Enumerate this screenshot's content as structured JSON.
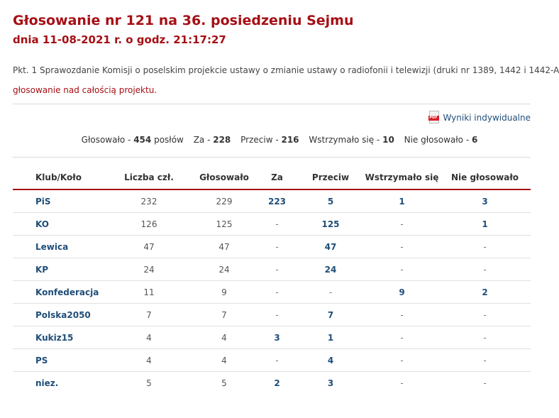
{
  "header": {
    "title": "Głosowanie nr 121 na 36. posiedzeniu Sejmu",
    "subtitle": "dnia 11-08-2021 r. o godz. 21:17:27"
  },
  "point_text": "Pkt. 1 Sprawozdanie Komisji o poselskim projekcie ustawy o zmianie ustawy o radiofonii i telewizji (druki nr 1389, 1442 i 1442-A)",
  "vote_description": "głosowanie nad całością projektu.",
  "pdf_link": {
    "label": "Wyniki indywidualne",
    "icon": "pdf-icon",
    "icon_text": "PDF"
  },
  "summary": {
    "voted_label": "Głosowało -",
    "voted_value": "454",
    "voted_unit": "posłów",
    "za_label": "Za -",
    "za_value": "228",
    "przeciw_label": "Przeciw -",
    "przeciw_value": "216",
    "wstrzymalo_label": "Wstrzymało się -",
    "wstrzymalo_value": "10",
    "nie_glosowalo_label": "Nie głosowało -",
    "nie_glosowalo_value": "6"
  },
  "table": {
    "columns": [
      "Klub/Koło",
      "Liczba czł.",
      "Głosowało",
      "Za",
      "Przeciw",
      "Wstrzymało się",
      "Nie głosowało"
    ],
    "rows": [
      [
        "PiS",
        "232",
        "229",
        "223",
        "5",
        "1",
        "3"
      ],
      [
        "KO",
        "126",
        "125",
        "-",
        "125",
        "-",
        "1"
      ],
      [
        "Lewica",
        "47",
        "47",
        "-",
        "47",
        "-",
        "-"
      ],
      [
        "KP",
        "24",
        "24",
        "-",
        "24",
        "-",
        "-"
      ],
      [
        "Konfederacja",
        "11",
        "9",
        "-",
        "-",
        "9",
        "2"
      ],
      [
        "Polska2050",
        "7",
        "7",
        "-",
        "7",
        "-",
        "-"
      ],
      [
        "Kukiz15",
        "4",
        "4",
        "3",
        "1",
        "-",
        "-"
      ],
      [
        "PS",
        "4",
        "4",
        "-",
        "4",
        "-",
        "-"
      ],
      [
        "niez.",
        "5",
        "5",
        "2",
        "3",
        "-",
        "-"
      ]
    ]
  },
  "colors": {
    "accent": "#a50f15",
    "link": "#1f4e79"
  }
}
